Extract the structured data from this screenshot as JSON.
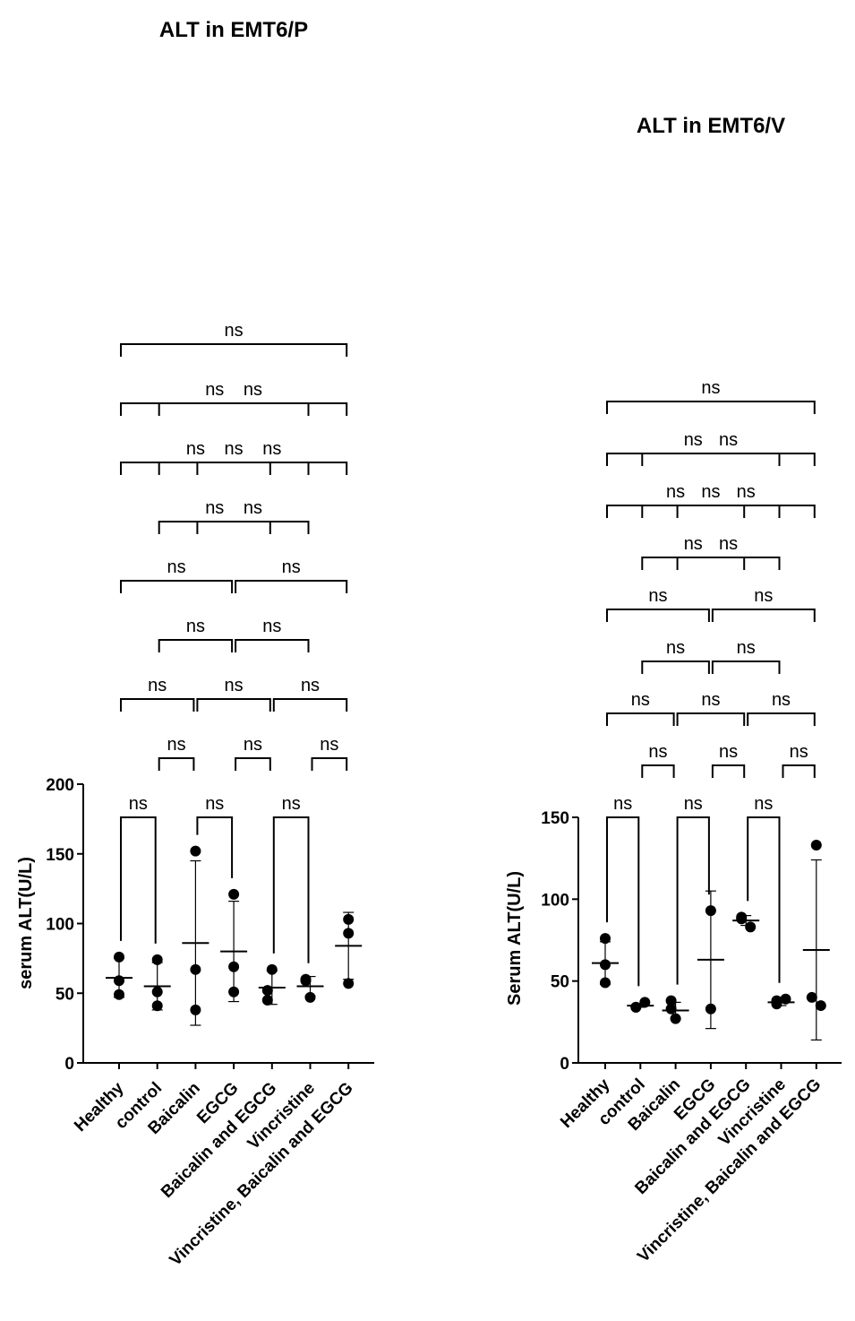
{
  "colors": {
    "ink": "#000000",
    "background": "#ffffff"
  },
  "chart_data": [
    {
      "type": "scatter",
      "title": "ALT in EMT6/P",
      "ylabel": "serum ALT(U/L)",
      "xlabel": "",
      "ylim": [
        0,
        200
      ],
      "yticks": [
        0,
        50,
        100,
        150,
        200
      ],
      "grid": false,
      "categories": [
        "Healthy",
        "control",
        "Baicalin",
        "EGCG",
        "Baicalin and EGCG",
        "Vincristine",
        "Vincristine, Baicalin and EGCG"
      ],
      "points": [
        [
          76,
          49,
          59
        ],
        [
          74,
          41,
          51
        ],
        [
          152,
          38,
          67
        ],
        [
          121,
          51,
          69
        ],
        [
          45,
          67,
          52
        ],
        [
          59,
          47,
          60
        ],
        [
          103,
          57,
          93
        ]
      ],
      "mean": [
        61,
        55,
        86,
        80,
        54,
        55,
        84
      ],
      "sd": [
        14,
        17,
        59,
        36,
        12,
        7,
        24
      ],
      "comparisons": [
        {
          "a": 0,
          "b": 1,
          "label": "ns"
        },
        {
          "a": 2,
          "b": 3,
          "label": "ns"
        },
        {
          "a": 4,
          "b": 5,
          "label": "ns"
        },
        {
          "a": 1,
          "b": 2,
          "label": "ns"
        },
        {
          "a": 3,
          "b": 4,
          "label": "ns"
        },
        {
          "a": 5,
          "b": 6,
          "label": "ns"
        },
        {
          "a": 0,
          "b": 2,
          "label": "ns"
        },
        {
          "a": 2,
          "b": 4,
          "label": "ns"
        },
        {
          "a": 4,
          "b": 6,
          "label": "ns"
        },
        {
          "a": 1,
          "b": 3,
          "label": "ns"
        },
        {
          "a": 3,
          "b": 5,
          "label": "ns"
        },
        {
          "a": 0,
          "b": 3,
          "label": "ns"
        },
        {
          "a": 3,
          "b": 6,
          "label": "ns"
        },
        {
          "a": 1,
          "b": 4,
          "label": "ns"
        },
        {
          "a": 2,
          "b": 5,
          "label": "ns"
        },
        {
          "a": 0,
          "b": 4,
          "label": "ns"
        },
        {
          "a": 1,
          "b": 5,
          "label": "ns"
        },
        {
          "a": 2,
          "b": 6,
          "label": "ns"
        },
        {
          "a": 0,
          "b": 5,
          "label": "ns"
        },
        {
          "a": 1,
          "b": 6,
          "label": "ns"
        },
        {
          "a": 0,
          "b": 6,
          "label": "ns"
        }
      ]
    },
    {
      "type": "scatter",
      "title": "ALT in EMT6/V",
      "ylabel": "Serum ALT(U/L)",
      "xlabel": "",
      "ylim": [
        0,
        150
      ],
      "yticks": [
        0,
        50,
        100,
        150
      ],
      "grid": false,
      "categories": [
        "Healthy",
        "control",
        "Baicalin",
        "EGCG",
        "Baicalin and EGCG",
        "Vincristine",
        "Vincristine, Baicalin and EGCG"
      ],
      "points": [
        [
          76,
          49,
          60
        ],
        [
          34,
          37,
          34
        ],
        [
          38,
          27,
          33
        ],
        [
          93,
          33,
          null
        ],
        [
          89,
          83,
          88
        ],
        [
          36,
          39,
          38
        ],
        [
          133,
          35,
          40
        ]
      ],
      "mean": [
        61,
        35,
        32,
        63,
        87,
        37,
        69
      ],
      "sd": [
        13,
        1,
        5,
        42,
        3,
        2,
        55
      ],
      "comparisons": [
        {
          "a": 0,
          "b": 1,
          "label": "ns"
        },
        {
          "a": 2,
          "b": 3,
          "label": "ns"
        },
        {
          "a": 4,
          "b": 5,
          "label": "ns"
        },
        {
          "a": 1,
          "b": 2,
          "label": "ns"
        },
        {
          "a": 3,
          "b": 4,
          "label": "ns"
        },
        {
          "a": 5,
          "b": 6,
          "label": "ns"
        },
        {
          "a": 0,
          "b": 2,
          "label": "ns"
        },
        {
          "a": 2,
          "b": 4,
          "label": "ns"
        },
        {
          "a": 4,
          "b": 6,
          "label": "ns"
        },
        {
          "a": 1,
          "b": 3,
          "label": "ns"
        },
        {
          "a": 3,
          "b": 5,
          "label": "ns"
        },
        {
          "a": 0,
          "b": 3,
          "label": "ns"
        },
        {
          "a": 3,
          "b": 6,
          "label": "ns"
        },
        {
          "a": 1,
          "b": 4,
          "label": "ns"
        },
        {
          "a": 2,
          "b": 5,
          "label": "ns"
        },
        {
          "a": 0,
          "b": 4,
          "label": "ns"
        },
        {
          "a": 1,
          "b": 5,
          "label": "ns"
        },
        {
          "a": 2,
          "b": 6,
          "label": "ns"
        },
        {
          "a": 0,
          "b": 5,
          "label": "ns"
        },
        {
          "a": 1,
          "b": 6,
          "label": "ns"
        },
        {
          "a": 0,
          "b": 6,
          "label": "ns"
        }
      ]
    }
  ]
}
